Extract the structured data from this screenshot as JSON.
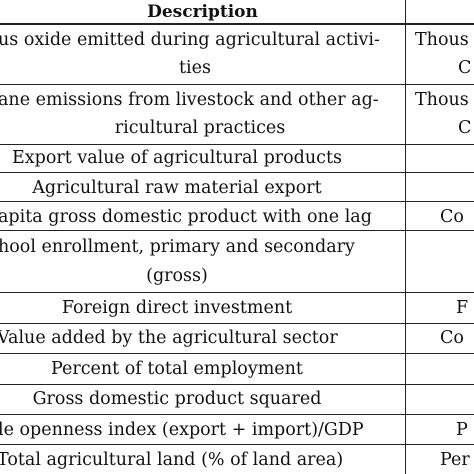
{
  "table": {
    "header": {
      "description": "Description"
    },
    "rows": [
      {
        "description": [
          "us oxide emitted during agricultural activi-",
          "ties"
        ],
        "unit": [
          "Thous",
          "C"
        ]
      },
      {
        "description": [
          "ane emissions from livestock and other ag-",
          "ricultural practices"
        ],
        "unit": [
          "Thous",
          "C"
        ]
      },
      {
        "description": [
          "Export value of agricultural products"
        ],
        "unit": [
          ""
        ]
      },
      {
        "description": [
          "Agricultural raw material export"
        ],
        "unit": [
          ""
        ]
      },
      {
        "description": [
          "apita gross domestic product with one lag"
        ],
        "unit": [
          "Co"
        ]
      },
      {
        "description": [
          "hool enrollment, primary and secondary",
          "(gross)"
        ],
        "unit": [
          ""
        ]
      },
      {
        "description": [
          "Foreign direct investment"
        ],
        "unit": [
          "F"
        ]
      },
      {
        "description": [
          "Value added by the agricultural sector"
        ],
        "unit": [
          "Co"
        ]
      },
      {
        "description": [
          "Percent of total employment"
        ],
        "unit": [
          ""
        ]
      },
      {
        "description": [
          "Gross domestic product squared"
        ],
        "unit": [
          ""
        ]
      },
      {
        "description": [
          "le openness index (export + import)/GDP"
        ],
        "unit": [
          "P"
        ]
      },
      {
        "description": [
          "Total agricultural land (% of land area)"
        ],
        "unit": [
          "Per"
        ]
      }
    ]
  }
}
